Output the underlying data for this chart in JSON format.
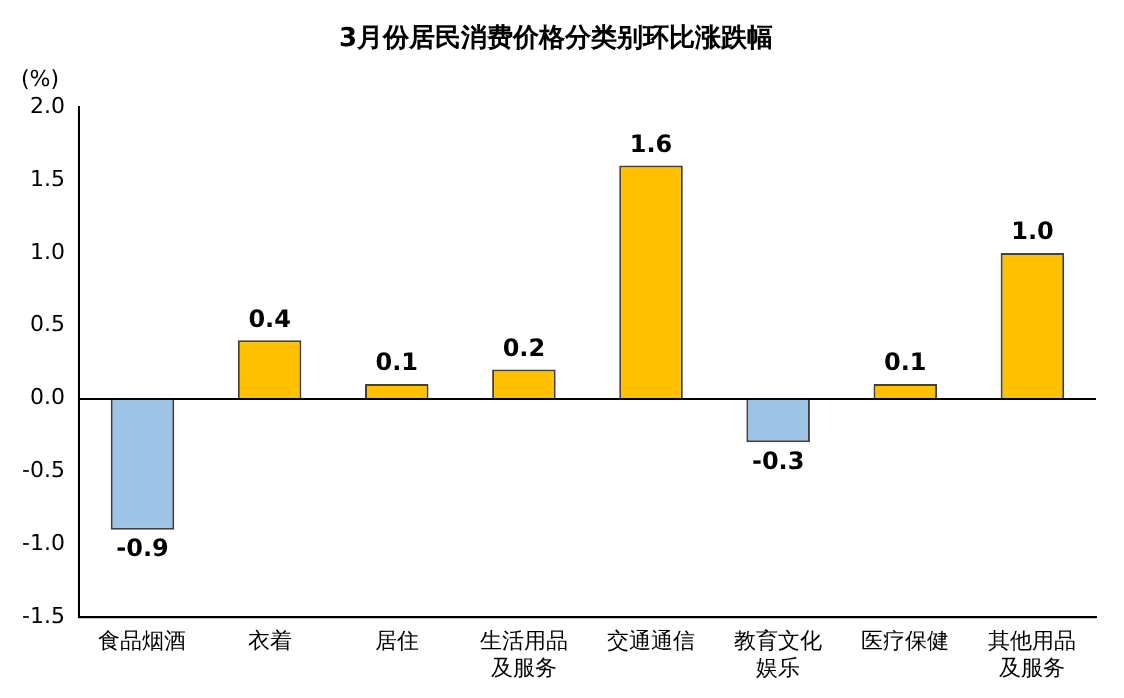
{
  "chart_data": {
    "type": "bar",
    "title": "3月份居民消费价格分类别环比涨跌幅",
    "ylabel": "(%)",
    "categories": [
      "食品烟酒",
      "衣着",
      "居住",
      "生活用品及服务",
      "交通通信",
      "教育文化娱乐",
      "医疗保健",
      "其他用品及服务"
    ],
    "values": [
      -0.9,
      0.4,
      0.1,
      0.2,
      1.6,
      -0.3,
      0.1,
      1.0
    ],
    "colors": [
      "#9dc3e6",
      "#ffc000",
      "#ffc000",
      "#ffc000",
      "#ffc000",
      "#9dc3e6",
      "#ffc000",
      "#ffc000"
    ],
    "value_labels": [
      "-0.9",
      "0.4",
      "0.1",
      "0.2",
      "1.6",
      "-0.3",
      "0.1",
      "1.0"
    ],
    "ylim": [
      -1.5,
      2
    ],
    "yticks": [
      {
        "value": -1.5,
        "label": "-1.5"
      },
      {
        "value": -1,
        "label": "-1.0"
      },
      {
        "value": -0.5,
        "label": "-0.5"
      },
      {
        "value": 0,
        "label": "0.0"
      },
      {
        "value": 0.5,
        "label": "0.5"
      },
      {
        "value": 1,
        "label": "1.0"
      },
      {
        "value": 1.5,
        "label": "1.5"
      },
      {
        "value": 2,
        "label": "2.0"
      }
    ],
    "ref_lines": [
      {
        "axis": "y",
        "value": 0,
        "color": "#000000"
      }
    ],
    "grid": false,
    "legend": false
  }
}
